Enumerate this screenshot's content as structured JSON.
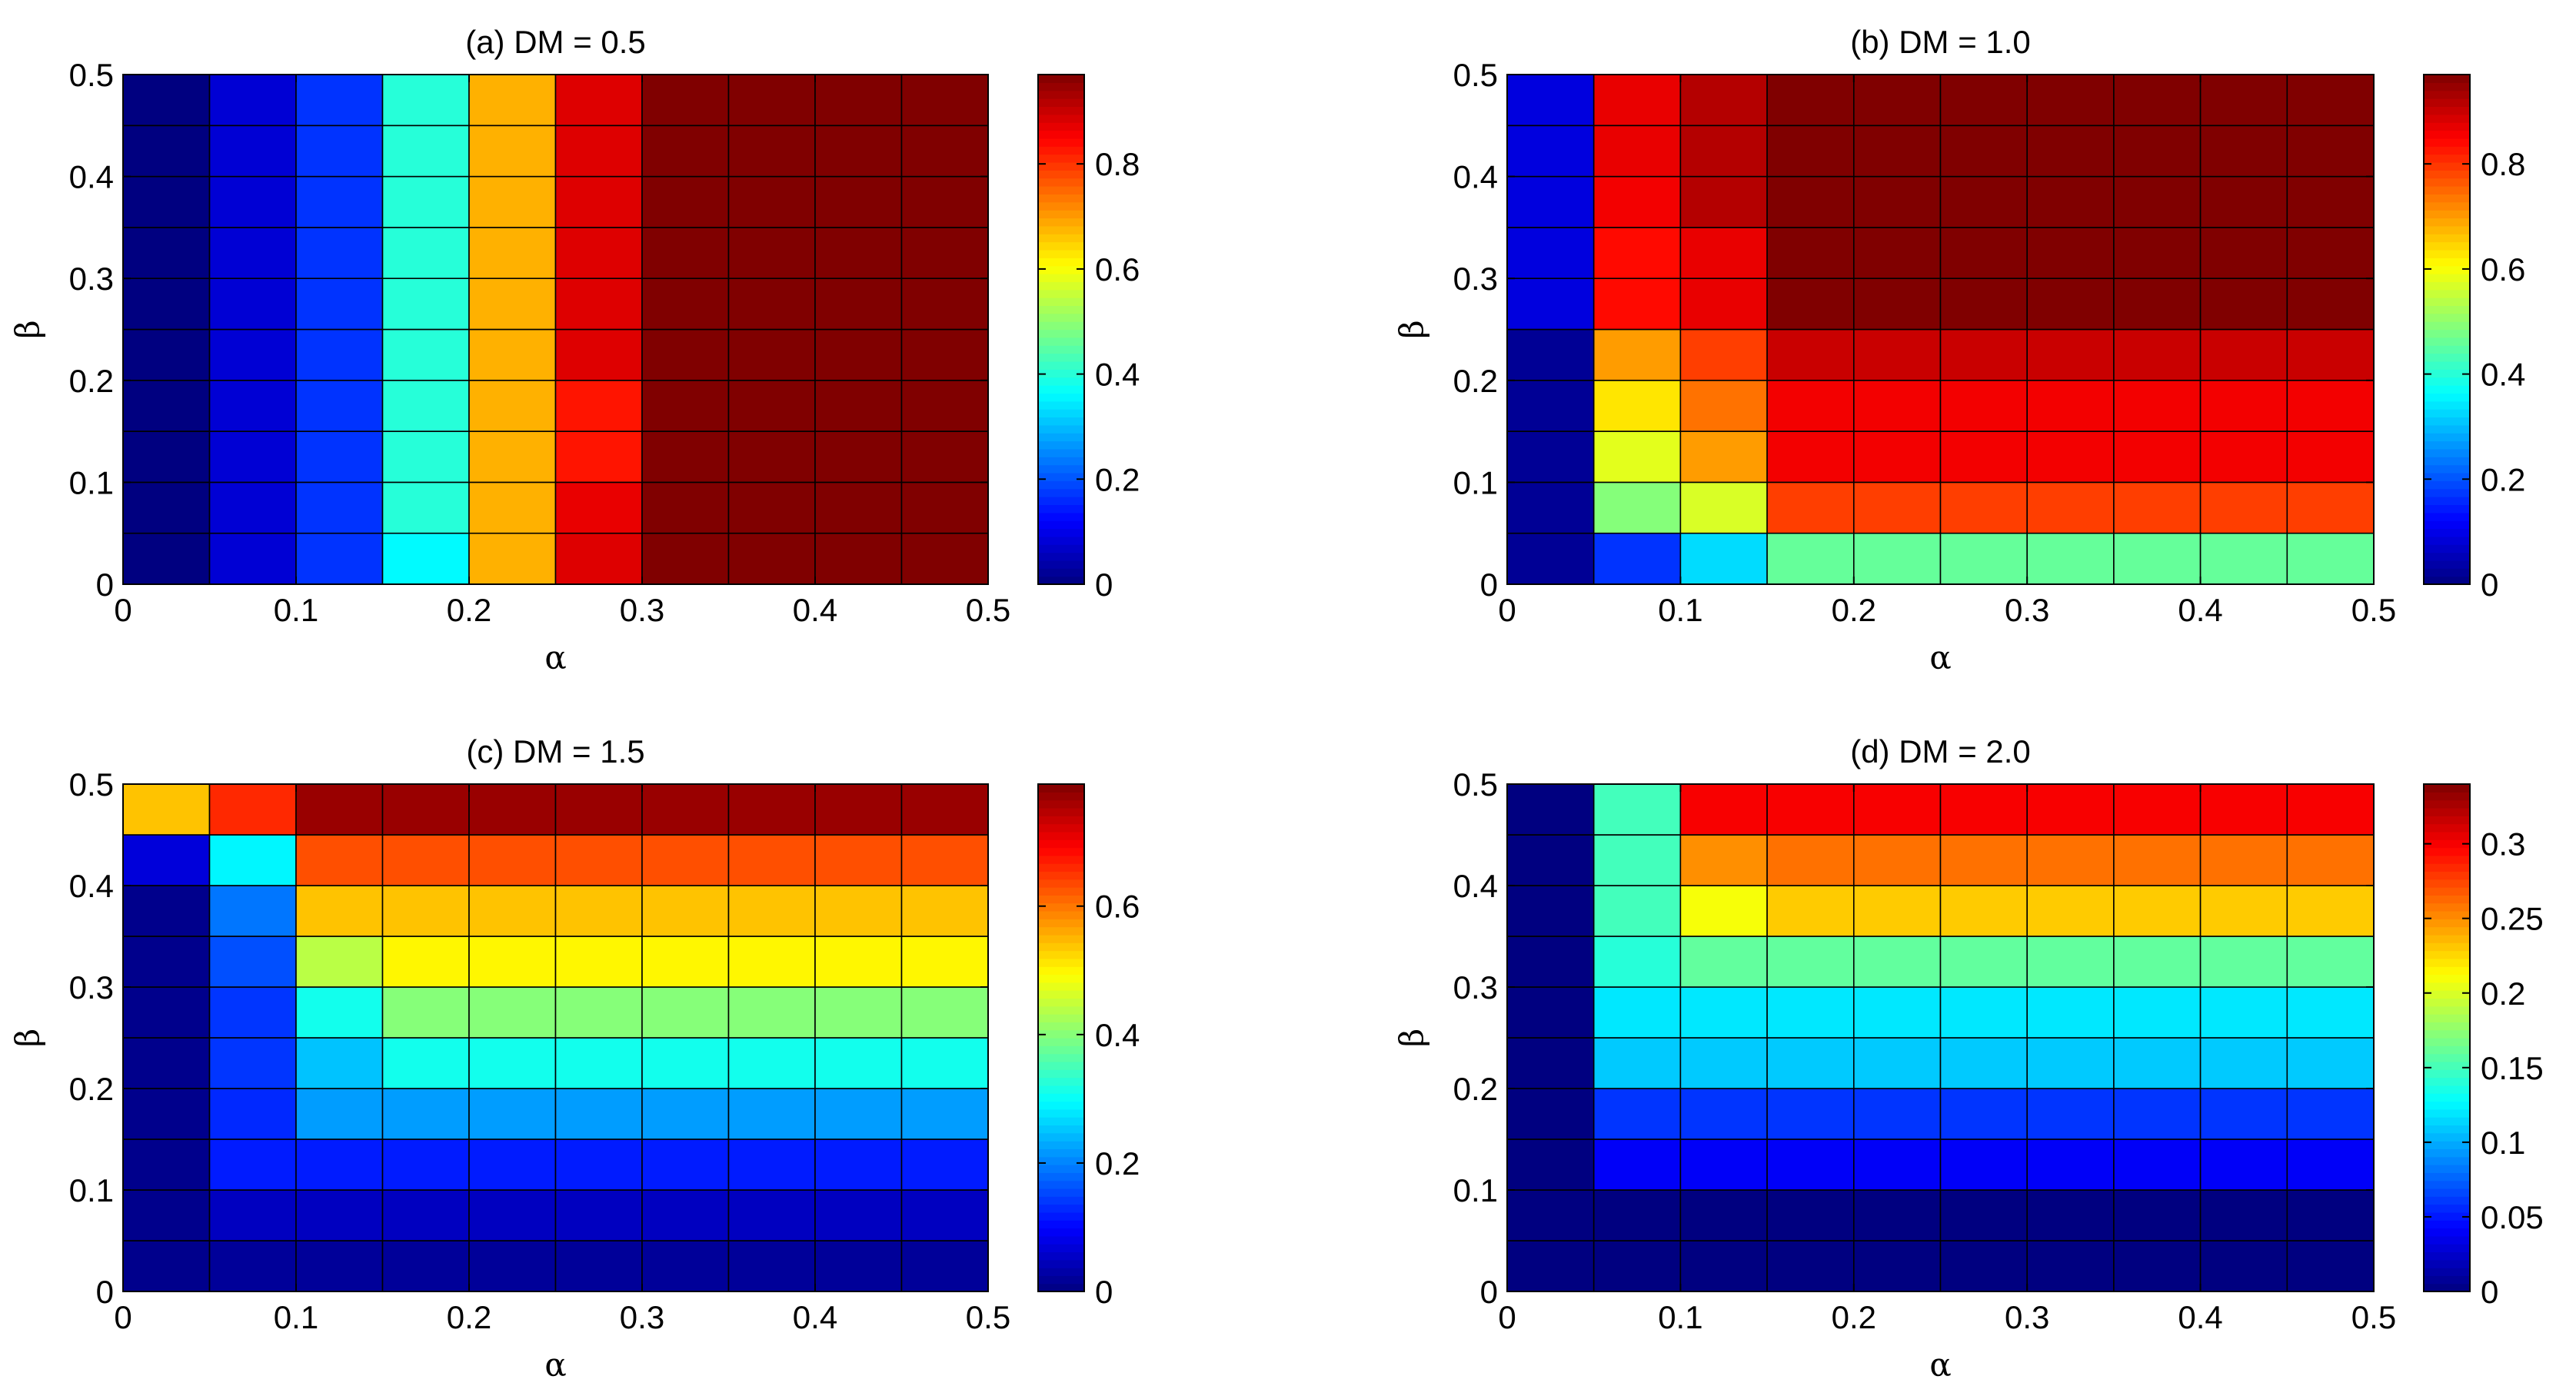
{
  "chart_data": [
    {
      "type": "heatmap",
      "title": "(a) DM = 0.5",
      "xlabel": "α",
      "ylabel": "β",
      "xlim": [
        0,
        0.5
      ],
      "ylim": [
        0,
        0.5
      ],
      "xticks": [
        "0",
        "0.1",
        "0.2",
        "0.3",
        "0.4",
        "0.5"
      ],
      "yticks": [
        "0",
        "0.1",
        "0.2",
        "0.3",
        "0.4",
        "0.5"
      ],
      "cell_size": 0.05,
      "clim": [
        0,
        0.97
      ],
      "colorbar_ticks": [
        {
          "value": 0,
          "label": "0"
        },
        {
          "value": 0.2,
          "label": "0.2"
        },
        {
          "value": 0.4,
          "label": "0.4"
        },
        {
          "value": 0.6,
          "label": "0.6"
        },
        {
          "value": 0.8,
          "label": "0.8"
        }
      ],
      "colormap": "jet",
      "grid": "cell edges",
      "z": [
        [
          0.0,
          0.08,
          0.17,
          0.36,
          0.68,
          0.88,
          0.97,
          0.97,
          0.97,
          0.97
        ],
        [
          0.0,
          0.08,
          0.17,
          0.4,
          0.68,
          0.87,
          0.97,
          0.97,
          0.97,
          0.97
        ],
        [
          0.0,
          0.08,
          0.17,
          0.4,
          0.68,
          0.83,
          0.97,
          0.97,
          0.97,
          0.97
        ],
        [
          0.0,
          0.08,
          0.17,
          0.4,
          0.68,
          0.83,
          0.97,
          0.97,
          0.97,
          0.97
        ],
        [
          0.0,
          0.08,
          0.17,
          0.4,
          0.68,
          0.88,
          0.97,
          0.97,
          0.97,
          0.97
        ],
        [
          0.0,
          0.08,
          0.17,
          0.4,
          0.68,
          0.88,
          0.97,
          0.97,
          0.97,
          0.97
        ],
        [
          0.0,
          0.08,
          0.17,
          0.4,
          0.68,
          0.88,
          0.97,
          0.97,
          0.97,
          0.97
        ],
        [
          0.0,
          0.08,
          0.17,
          0.4,
          0.68,
          0.88,
          0.97,
          0.97,
          0.97,
          0.97
        ],
        [
          0.0,
          0.08,
          0.17,
          0.4,
          0.68,
          0.88,
          0.97,
          0.97,
          0.97,
          0.97
        ],
        [
          0.0,
          0.08,
          0.17,
          0.4,
          0.68,
          0.88,
          0.97,
          0.97,
          0.97,
          0.97
        ]
      ]
    },
    {
      "type": "heatmap",
      "title": "(b) DM = 1.0",
      "xlabel": "α",
      "ylabel": "β",
      "xlim": [
        0,
        0.5
      ],
      "ylim": [
        0,
        0.5
      ],
      "xticks": [
        "0",
        "0.1",
        "0.2",
        "0.3",
        "0.4",
        "0.5"
      ],
      "yticks": [
        "0",
        "0.1",
        "0.2",
        "0.3",
        "0.4",
        "0.5"
      ],
      "cell_size": 0.05,
      "clim": [
        0,
        0.97
      ],
      "colorbar_ticks": [
        {
          "value": 0,
          "label": "0"
        },
        {
          "value": 0.2,
          "label": "0.2"
        },
        {
          "value": 0.4,
          "label": "0.4"
        },
        {
          "value": 0.6,
          "label": "0.6"
        },
        {
          "value": 0.8,
          "label": "0.8"
        }
      ],
      "colormap": "jet",
      "grid": "cell edges",
      "z": [
        [
          0.02,
          0.17,
          0.33,
          0.46,
          0.46,
          0.46,
          0.46,
          0.46,
          0.46,
          0.46
        ],
        [
          0.02,
          0.49,
          0.57,
          0.79,
          0.79,
          0.79,
          0.79,
          0.79,
          0.79,
          0.79
        ],
        [
          0.02,
          0.58,
          0.7,
          0.86,
          0.86,
          0.86,
          0.86,
          0.86,
          0.86,
          0.86
        ],
        [
          0.02,
          0.63,
          0.74,
          0.86,
          0.86,
          0.86,
          0.86,
          0.86,
          0.86,
          0.86
        ],
        [
          0.02,
          0.7,
          0.79,
          0.9,
          0.9,
          0.9,
          0.9,
          0.9,
          0.9,
          0.9
        ],
        [
          0.09,
          0.84,
          0.87,
          0.97,
          0.97,
          0.97,
          0.97,
          0.97,
          0.97,
          0.97
        ],
        [
          0.09,
          0.84,
          0.87,
          0.97,
          0.97,
          0.97,
          0.97,
          0.97,
          0.97,
          0.97
        ],
        [
          0.09,
          0.86,
          0.92,
          0.97,
          0.97,
          0.97,
          0.97,
          0.97,
          0.97,
          0.97
        ],
        [
          0.09,
          0.87,
          0.92,
          0.97,
          0.97,
          0.97,
          0.97,
          0.97,
          0.97,
          0.97
        ],
        [
          0.09,
          0.87,
          0.92,
          0.97,
          0.97,
          0.97,
          0.97,
          0.97,
          0.97,
          0.97
        ]
      ]
    },
    {
      "type": "heatmap",
      "title": "(c) DM = 1.5",
      "xlabel": "α",
      "ylabel": "β",
      "xlim": [
        0,
        0.5
      ],
      "ylim": [
        0,
        0.5
      ],
      "xticks": [
        "0",
        "0.1",
        "0.2",
        "0.3",
        "0.4",
        "0.5"
      ],
      "yticks": [
        "0",
        "0.1",
        "0.2",
        "0.3",
        "0.4",
        "0.5"
      ],
      "cell_size": 0.05,
      "clim": [
        0,
        0.79
      ],
      "colorbar_ticks": [
        {
          "value": 0,
          "label": "0"
        },
        {
          "value": 0.2,
          "label": "0.2"
        },
        {
          "value": 0.4,
          "label": "0.4"
        },
        {
          "value": 0.6,
          "label": "0.6"
        }
      ],
      "colormap": "jet",
      "grid": "cell edges",
      "z": [
        [
          0.01,
          0.02,
          0.02,
          0.02,
          0.02,
          0.02,
          0.02,
          0.02,
          0.02,
          0.02
        ],
        [
          0.01,
          0.05,
          0.05,
          0.05,
          0.05,
          0.05,
          0.05,
          0.05,
          0.05,
          0.05
        ],
        [
          0.01,
          0.12,
          0.12,
          0.12,
          0.12,
          0.12,
          0.12,
          0.12,
          0.12,
          0.12
        ],
        [
          0.01,
          0.13,
          0.22,
          0.22,
          0.22,
          0.22,
          0.22,
          0.22,
          0.22,
          0.22
        ],
        [
          0.01,
          0.14,
          0.25,
          0.31,
          0.31,
          0.31,
          0.31,
          0.31,
          0.31,
          0.31
        ],
        [
          0.01,
          0.14,
          0.31,
          0.4,
          0.4,
          0.4,
          0.4,
          0.4,
          0.4,
          0.4
        ],
        [
          0.01,
          0.16,
          0.44,
          0.5,
          0.5,
          0.5,
          0.5,
          0.5,
          0.5,
          0.5
        ],
        [
          0.01,
          0.19,
          0.54,
          0.54,
          0.54,
          0.54,
          0.54,
          0.54,
          0.54,
          0.54
        ],
        [
          0.07,
          0.29,
          0.63,
          0.63,
          0.63,
          0.63,
          0.63,
          0.63,
          0.63,
          0.63
        ],
        [
          0.54,
          0.66,
          0.77,
          0.77,
          0.77,
          0.77,
          0.77,
          0.77,
          0.77,
          0.77
        ]
      ]
    },
    {
      "type": "heatmap",
      "title": "(d) DM = 2.0",
      "xlabel": "α",
      "ylabel": "β",
      "xlim": [
        0,
        0.5
      ],
      "ylim": [
        0,
        0.5
      ],
      "xticks": [
        "0",
        "0.1",
        "0.2",
        "0.3",
        "0.4",
        "0.5"
      ],
      "yticks": [
        "0",
        "0.1",
        "0.2",
        "0.3",
        "0.4",
        "0.5"
      ],
      "cell_size": 0.05,
      "clim": [
        0,
        0.34
      ],
      "colorbar_ticks": [
        {
          "value": 0,
          "label": "0"
        },
        {
          "value": 0.05,
          "label": "0.05"
        },
        {
          "value": 0.1,
          "label": "0.1"
        },
        {
          "value": 0.15,
          "label": "0.15"
        },
        {
          "value": 0.2,
          "label": "0.2"
        },
        {
          "value": 0.25,
          "label": "0.25"
        },
        {
          "value": 0.3,
          "label": "0.3"
        }
      ],
      "colormap": "jet",
      "grid": "cell edges",
      "z": [
        [
          0.0,
          0.0,
          0.0,
          0.0,
          0.0,
          0.0,
          0.0,
          0.0,
          0.0,
          0.0
        ],
        [
          0.0,
          0.0,
          0.0,
          0.0,
          0.0,
          0.0,
          0.0,
          0.0,
          0.0,
          0.0
        ],
        [
          0.0,
          0.04,
          0.04,
          0.04,
          0.04,
          0.04,
          0.04,
          0.04,
          0.04,
          0.04
        ],
        [
          0.0,
          0.06,
          0.06,
          0.06,
          0.06,
          0.06,
          0.06,
          0.06,
          0.06,
          0.06
        ],
        [
          0.0,
          0.11,
          0.11,
          0.11,
          0.11,
          0.11,
          0.11,
          0.11,
          0.11,
          0.11
        ],
        [
          0.0,
          0.12,
          0.12,
          0.12,
          0.12,
          0.12,
          0.12,
          0.12,
          0.12,
          0.12
        ],
        [
          0.0,
          0.14,
          0.16,
          0.16,
          0.16,
          0.16,
          0.16,
          0.16,
          0.16,
          0.16
        ],
        [
          0.0,
          0.15,
          0.21,
          0.23,
          0.23,
          0.23,
          0.23,
          0.23,
          0.23,
          0.23
        ],
        [
          0.0,
          0.15,
          0.25,
          0.26,
          0.26,
          0.26,
          0.26,
          0.26,
          0.26,
          0.26
        ],
        [
          0.0,
          0.15,
          0.3,
          0.3,
          0.3,
          0.3,
          0.3,
          0.3,
          0.3,
          0.3
        ]
      ]
    }
  ]
}
